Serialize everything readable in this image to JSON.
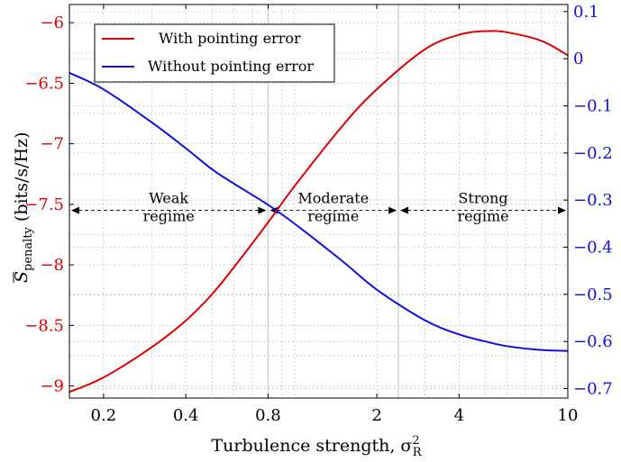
{
  "chart_data": {
    "type": "line",
    "xlabel": "Turbulence strength, σ",
    "xlabel_sup": "2",
    "xlabel_sub": "R",
    "ylabel_left": "S",
    "ylabel_left_sub": "penalty",
    "ylabel_left_unit": "(bits/s/Hz)",
    "x_scale": "log",
    "xlim": [
      0.15,
      10
    ],
    "ylim_left": [
      -9.1,
      -5.85
    ],
    "ylim_right": [
      -0.72,
      0.115
    ],
    "grid": true,
    "legend_position": "top-left",
    "x_ticks": [
      {
        "v": 0.2,
        "label": "0.2"
      },
      {
        "v": 0.4,
        "label": "0.4"
      },
      {
        "v": 0.8,
        "label": "0.8"
      },
      {
        "v": 2,
        "label": "2"
      },
      {
        "v": 4,
        "label": "4"
      },
      {
        "v": 10,
        "label": "10"
      }
    ],
    "y_ticks_left": [
      {
        "v": -6,
        "label": "−6"
      },
      {
        "v": -6.5,
        "label": "−6.5"
      },
      {
        "v": -7,
        "label": "−7"
      },
      {
        "v": -7.5,
        "label": "−7.5"
      },
      {
        "v": -8,
        "label": "−8"
      },
      {
        "v": -8.5,
        "label": "−8.5"
      },
      {
        "v": -9,
        "label": "−9"
      }
    ],
    "y_ticks_right": [
      {
        "v": 0.1,
        "label": "0.1"
      },
      {
        "v": 0,
        "label": "0"
      },
      {
        "v": -0.1,
        "label": "−0.1"
      },
      {
        "v": -0.2,
        "label": "−0.2"
      },
      {
        "v": -0.3,
        "label": "−0.3"
      },
      {
        "v": -0.4,
        "label": "−0.4"
      },
      {
        "v": -0.5,
        "label": "−0.5"
      },
      {
        "v": -0.6,
        "label": "−0.6"
      },
      {
        "v": -0.7,
        "label": "−0.7"
      }
    ],
    "boundaries": [
      0.8,
      2.4
    ],
    "regime_arrow_y": -7.55,
    "regimes": [
      {
        "line1": "Weak",
        "line2": "regime",
        "from": 0.15,
        "to": 0.8
      },
      {
        "line1": "Moderate",
        "line2": "regime",
        "from": 0.8,
        "to": 2.4
      },
      {
        "line1": "Strong",
        "line2": "regime",
        "from": 2.4,
        "to": 10
      }
    ],
    "series": [
      {
        "name": "With pointing error",
        "color": "#e00000",
        "axis": "left",
        "x": [
          0.15,
          0.2,
          0.3,
          0.4,
          0.5,
          0.6,
          0.8,
          1.0,
          1.5,
          2.0,
          3.0,
          4.0,
          5.0,
          6.0,
          8.0,
          10.0
        ],
        "y": [
          -9.05,
          -8.93,
          -8.68,
          -8.46,
          -8.24,
          -8.02,
          -7.65,
          -7.35,
          -6.85,
          -6.55,
          -6.22,
          -6.1,
          -6.07,
          -6.08,
          -6.15,
          -6.27
        ]
      },
      {
        "name": "Without pointing error",
        "color": "#1010e0",
        "axis": "right",
        "x": [
          0.15,
          0.2,
          0.3,
          0.4,
          0.5,
          0.6,
          0.8,
          1.0,
          1.5,
          2.0,
          3.0,
          4.0,
          5.0,
          6.0,
          8.0,
          10.0
        ],
        "y": [
          -0.03,
          -0.065,
          -0.135,
          -0.19,
          -0.235,
          -0.265,
          -0.31,
          -0.35,
          -0.43,
          -0.49,
          -0.555,
          -0.585,
          -0.6,
          -0.61,
          -0.618,
          -0.62
        ]
      }
    ]
  }
}
